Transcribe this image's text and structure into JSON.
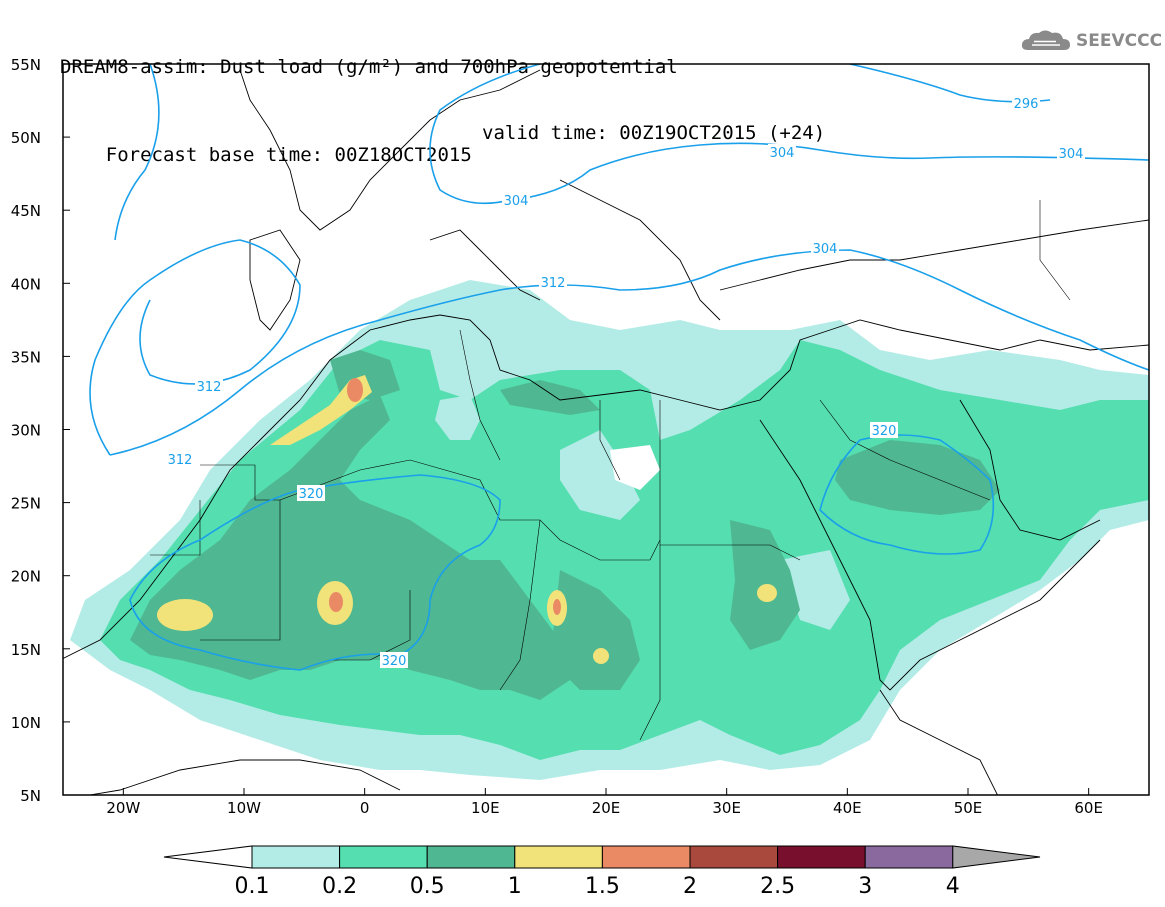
{
  "header": {
    "title_line1": "DREAM8-assim: Dust load (g/m²) and 700hPa geopotential",
    "title_line2": "Forecast base time: 00Z18OCT2015",
    "valid_time": "valid time: 00Z19OCT2015 (+24)"
  },
  "logo": {
    "text": "SEEVCCC",
    "icon": "cloud-icon"
  },
  "map": {
    "lat_labels": [
      "55N",
      "50N",
      "45N",
      "40N",
      "35N",
      "30N",
      "25N",
      "20N",
      "15N",
      "10N",
      "5N"
    ],
    "lon_labels": [
      "20W",
      "10W",
      "0",
      "10E",
      "20E",
      "30E",
      "40E",
      "50E",
      "60E"
    ],
    "contour_labels": [
      "296",
      "304",
      "304",
      "304",
      "304",
      "312",
      "312",
      "312",
      "320",
      "320",
      "320"
    ]
  },
  "legend": {
    "levels": [
      "0.1",
      "0.2",
      "0.5",
      "1",
      "1.5",
      "2",
      "2.5",
      "3",
      "4"
    ],
    "colors": [
      "#ffffff",
      "#b3ece6",
      "#55deb0",
      "#4fb791",
      "#f1e37a",
      "#e98a65",
      "#a9483c",
      "#780f2c",
      "#8a6a9e",
      "#a8a8a8"
    ]
  },
  "chart_data": {
    "type": "heatmap",
    "title": "DREAM8-assim: Dust load (g/m²) and 700hPa geopotential",
    "xlim": [
      -25,
      65
    ],
    "ylim": [
      5,
      55
    ],
    "field": "Dust load (g/m²)",
    "contour_field": "700hPa geopotential",
    "contour_levels": [
      296,
      304,
      312,
      320
    ]
  }
}
